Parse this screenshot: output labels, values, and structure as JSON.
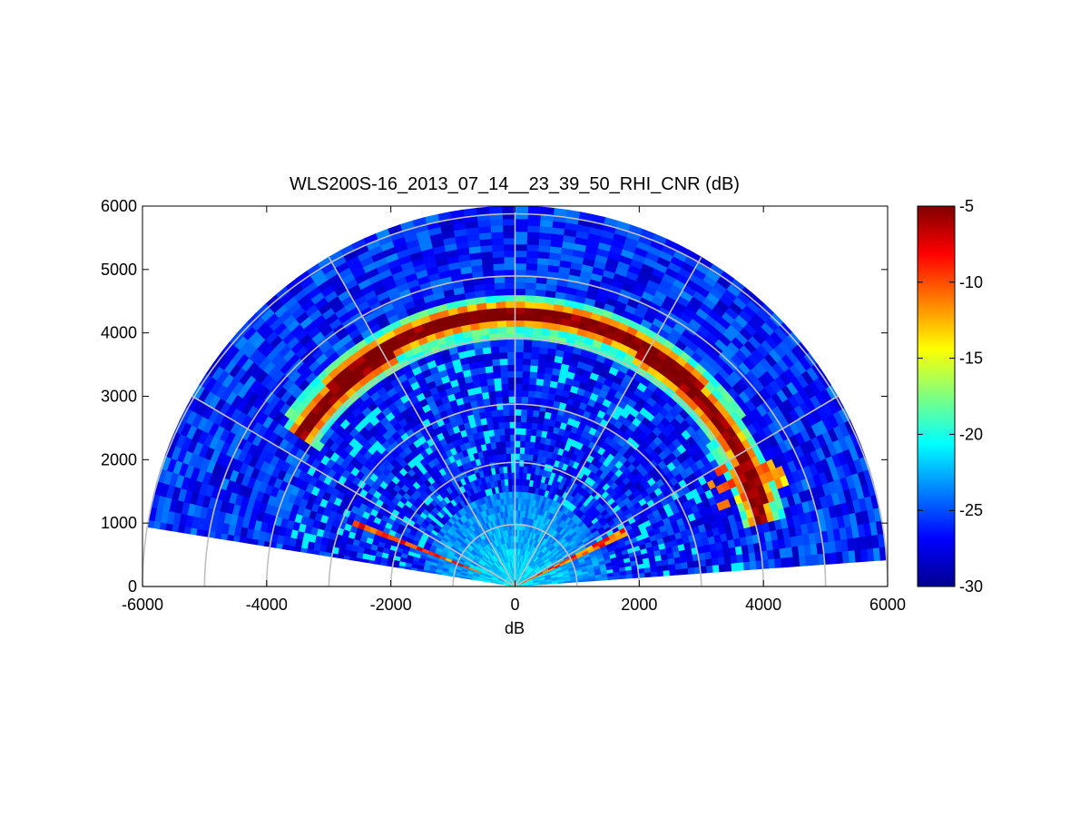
{
  "chart_data": {
    "type": "heatmap",
    "subtype": "polar-rhi-fan",
    "title": "WLS200S-16_2013_07_14__23_39_50_RHI_CNR (dB)",
    "xlabel": "dB",
    "ylabel": "",
    "xlim": [
      -6000,
      6000
    ],
    "ylim": [
      0,
      6000
    ],
    "xticks": [
      -6000,
      -4000,
      -2000,
      0,
      2000,
      4000,
      6000
    ],
    "yticks": [
      0,
      1000,
      2000,
      3000,
      4000,
      5000,
      6000
    ],
    "xtick_labels": [
      "-6000",
      "-4000",
      "-2000",
      "0",
      "2000",
      "4000",
      "6000"
    ],
    "ytick_labels": [
      "0",
      "1000",
      "2000",
      "3000",
      "4000",
      "5000",
      "6000"
    ],
    "colorbar": {
      "range": [
        -30,
        -5
      ],
      "ticks": [
        -5,
        -10,
        -15,
        -20,
        -25,
        -30
      ],
      "tick_labels": [
        "-5",
        "-10",
        "-15",
        "-20",
        "-25",
        "-30"
      ],
      "colormap": "jet"
    },
    "scan": {
      "elevation_start_deg": 4,
      "elevation_end_deg": 171,
      "max_range": 6000,
      "range_gate": 100
    },
    "polar_grid": {
      "range_rings": [
        1000,
        2000,
        3000,
        4000,
        5000,
        6000
      ],
      "angle_spokes_deg": [
        0,
        30,
        60,
        90,
        120,
        150,
        180
      ]
    },
    "features": [
      {
        "name": "cloud_layer",
        "range": 4200,
        "elevation_deg": [
          15,
          145
        ],
        "peak_dB": -5
      },
      {
        "name": "near_field_return",
        "range": [
          0,
          1500
        ],
        "value_dB": -20
      },
      {
        "name": "low_angle_streak_right",
        "elevation_deg": 26,
        "range": [
          0,
          2000
        ],
        "value_dB": -10
      },
      {
        "name": "low_angle_streak_left",
        "elevation_deg": 159,
        "range": [
          600,
          2800
        ],
        "value_dB": -10
      },
      {
        "name": "aerosol_layer_right",
        "range": [
          3500,
          4700
        ],
        "elevation_deg": [
          20,
          30
        ],
        "value_dB": -10
      },
      {
        "name": "background",
        "value_dB": -26
      }
    ]
  },
  "colors": {
    "grid": "#c0c0c0",
    "axis": "#000000",
    "background": "#ffffff"
  }
}
